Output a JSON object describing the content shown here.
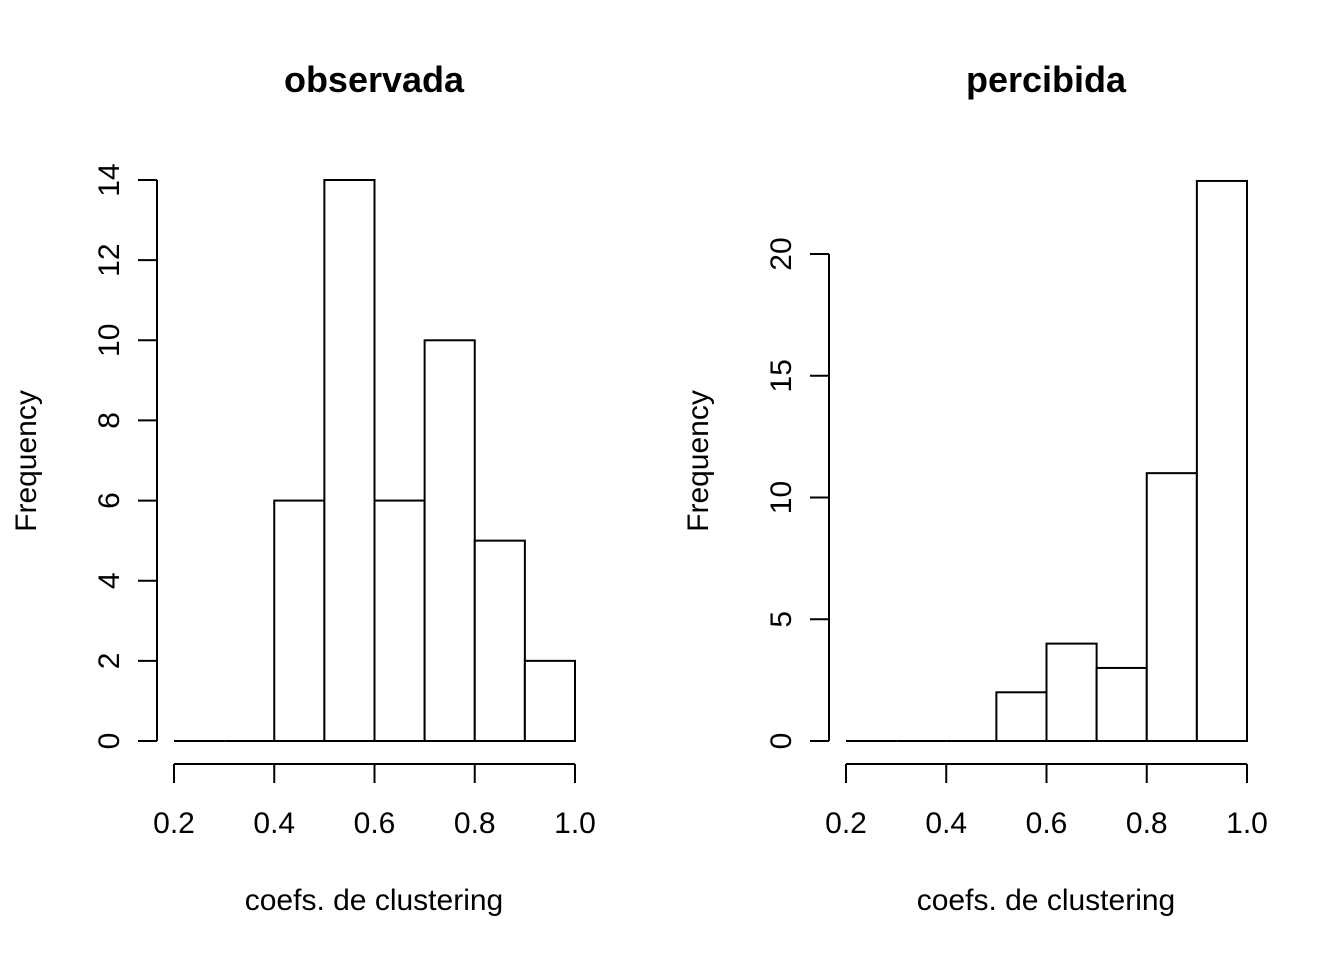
{
  "chart_data": [
    {
      "type": "bar",
      "title": "observada",
      "xlabel": "coefs. de clustering",
      "ylabel": "Frequency",
      "bin_edges": [
        0.2,
        0.3,
        0.4,
        0.5,
        0.6,
        0.7,
        0.8,
        0.9,
        1.0
      ],
      "values": [
        0,
        0,
        6,
        14,
        6,
        10,
        5,
        2
      ],
      "xticks": [
        "0.2",
        "0.4",
        "0.6",
        "0.8",
        "1.0"
      ],
      "yticks": [
        "0",
        "2",
        "4",
        "6",
        "8",
        "10",
        "12",
        "14"
      ],
      "xlim": [
        0.2,
        1.0
      ],
      "ylim": [
        0,
        14
      ],
      "grid": false
    },
    {
      "type": "bar",
      "title": "percibida",
      "xlabel": "coefs. de clustering",
      "ylabel": "Frequency",
      "bin_edges": [
        0.2,
        0.3,
        0.4,
        0.5,
        0.6,
        0.7,
        0.8,
        0.9,
        1.0
      ],
      "values": [
        0,
        0,
        0,
        2,
        4,
        3,
        11,
        23
      ],
      "xticks": [
        "0.2",
        "0.4",
        "0.6",
        "0.8",
        "1.0"
      ],
      "yticks": [
        "0",
        "5",
        "10",
        "15",
        "20"
      ],
      "xlim": [
        0.2,
        1.0
      ],
      "ylim": [
        0,
        20
      ],
      "grid": false
    }
  ]
}
